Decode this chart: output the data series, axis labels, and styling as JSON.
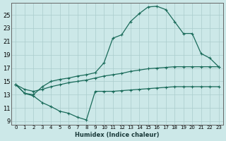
{
  "bg_color": "#cce8e8",
  "grid_color": "#aacccc",
  "line_color": "#1a6b5a",
  "xlim_min": -0.5,
  "xlim_max": 23.5,
  "ylim_min": 8.5,
  "ylim_max": 26.8,
  "xticks": [
    0,
    1,
    2,
    3,
    4,
    5,
    6,
    7,
    8,
    9,
    10,
    11,
    12,
    13,
    14,
    15,
    16,
    17,
    18,
    19,
    20,
    21,
    22,
    23
  ],
  "yticks": [
    9,
    11,
    13,
    15,
    17,
    19,
    21,
    23,
    25
  ],
  "xlabel": "Humidex (Indice chaleur)",
  "line1": {
    "x": [
      0,
      1,
      2,
      3,
      4,
      5,
      6,
      7,
      8,
      9,
      10,
      11,
      12,
      13,
      14,
      15,
      16,
      17,
      18,
      19,
      20,
      21,
      22,
      23
    ],
    "y": [
      14.5,
      13.2,
      13.0,
      14.2,
      15.0,
      15.3,
      15.5,
      15.8,
      16.0,
      16.3,
      17.8,
      21.5,
      22.0,
      24.0,
      25.2,
      26.2,
      26.3,
      25.8,
      24.0,
      22.2,
      22.2,
      19.2,
      18.5,
      17.2
    ]
  },
  "line2": {
    "x": [
      0,
      1,
      2,
      3,
      4,
      5,
      6,
      7,
      8,
      9,
      10,
      11,
      12,
      13,
      14,
      15,
      16,
      17,
      18,
      19,
      20,
      21,
      22,
      23
    ],
    "y": [
      14.5,
      13.8,
      13.5,
      13.8,
      14.2,
      14.5,
      14.8,
      15.0,
      15.2,
      15.5,
      15.8,
      16.0,
      16.2,
      16.5,
      16.7,
      16.9,
      17.0,
      17.1,
      17.2,
      17.2,
      17.2,
      17.2,
      17.2,
      17.2
    ]
  },
  "line3": {
    "x": [
      0,
      1,
      2,
      3,
      4,
      5,
      6,
      7,
      8,
      9,
      10,
      11,
      12,
      13,
      14,
      15,
      16,
      17,
      18,
      19,
      20,
      21,
      22,
      23
    ],
    "y": [
      14.5,
      13.2,
      12.8,
      11.8,
      11.2,
      10.5,
      10.2,
      9.6,
      9.2,
      13.5,
      13.5,
      13.5,
      13.6,
      13.7,
      13.8,
      13.9,
      14.0,
      14.1,
      14.2,
      14.2,
      14.2,
      14.2,
      14.2,
      14.2
    ]
  }
}
